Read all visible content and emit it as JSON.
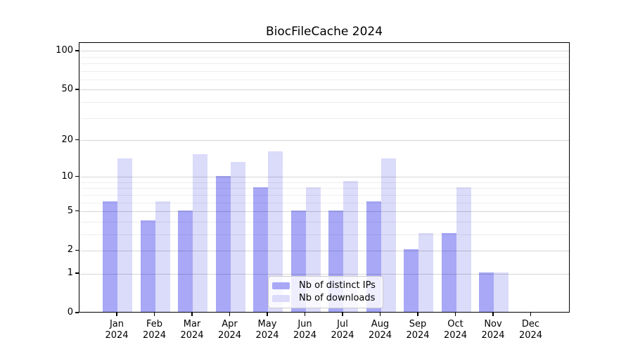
{
  "chart_data": {
    "type": "bar",
    "title": "BiocFileCache 2024",
    "categories": [
      "Jan",
      "Feb",
      "Mar",
      "Apr",
      "May",
      "Jun",
      "Jul",
      "Aug",
      "Sep",
      "Oct",
      "Nov",
      "Dec"
    ],
    "year_label": "2024",
    "series": [
      {
        "name": "Nb of distinct IPs",
        "color": "#a8a8f7",
        "values": [
          6,
          4,
          5,
          10,
          8,
          5,
          5,
          6,
          2,
          3,
          1,
          0
        ]
      },
      {
        "name": "Nb of downloads",
        "color": "#dbdbfa",
        "values": [
          14,
          6,
          15,
          13,
          16,
          8,
          9,
          14,
          3,
          8,
          1,
          0
        ]
      }
    ],
    "xlabel": "",
    "ylabel": "",
    "yscale": "log1p",
    "ylim": [
      0,
      116
    ],
    "yticks": [
      0,
      1,
      2,
      5,
      10,
      20,
      50,
      100
    ],
    "yticks_minor_gridlines": [
      3,
      4,
      6,
      7,
      8,
      9,
      30,
      40,
      60,
      70,
      80,
      90
    ],
    "grid": true,
    "legend": {
      "position": "lower center",
      "entries": [
        "Nb of distinct IPs",
        "Nb of downloads"
      ]
    }
  }
}
